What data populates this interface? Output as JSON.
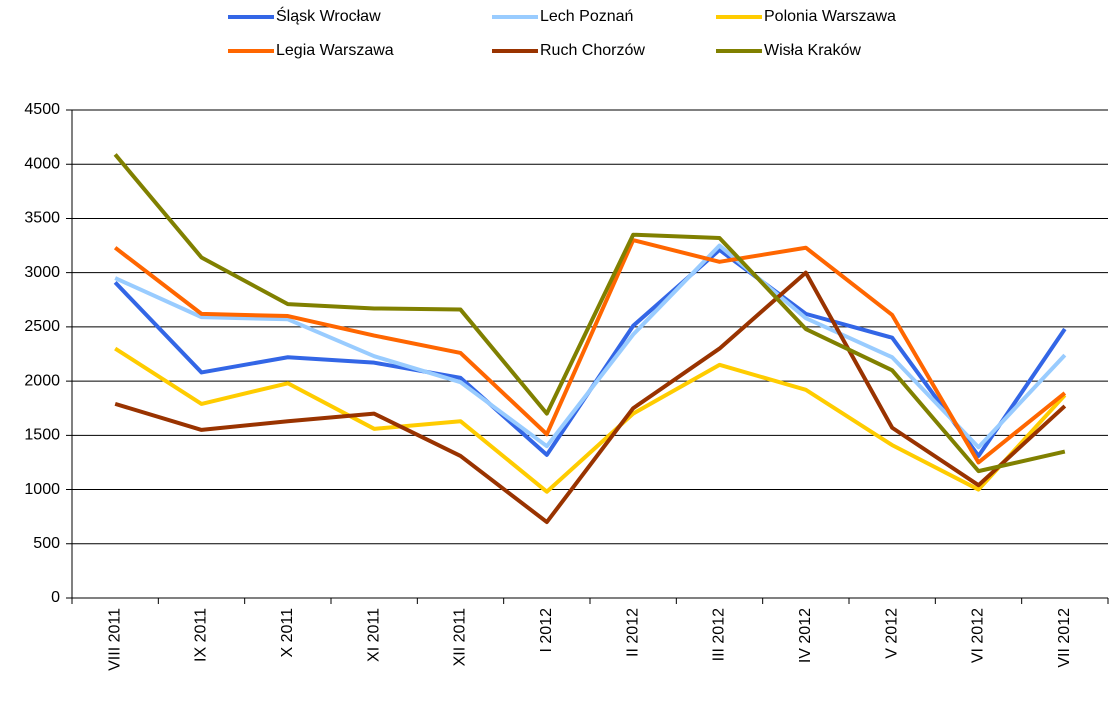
{
  "chart_data": {
    "type": "line",
    "categories": [
      "VIII 2011",
      "IX 2011",
      "X 2011",
      "XI 2011",
      "XII 2011",
      "I 2012",
      "II 2012",
      "III 2012",
      "IV 2012",
      "V 2012",
      "VI 2012",
      "VII 2012"
    ],
    "series": [
      {
        "name": "Śląsk Wrocław",
        "color": "#3366e6",
        "values": [
          2910,
          2080,
          2220,
          2170,
          2030,
          1320,
          2510,
          3210,
          2620,
          2400,
          1310,
          2480
        ]
      },
      {
        "name": "Lech Poznań",
        "color": "#99ccff",
        "values": [
          2950,
          2590,
          2570,
          2230,
          1990,
          1400,
          2430,
          3250,
          2580,
          2220,
          1390,
          2240
        ]
      },
      {
        "name": "Polonia Warszawa",
        "color": "#ffcc00",
        "values": [
          2300,
          1790,
          1980,
          1560,
          1630,
          980,
          1700,
          2150,
          1920,
          1410,
          1000,
          1870
        ]
      },
      {
        "name": "Legia Warszawa",
        "color": "#ff6600",
        "values": [
          3230,
          2620,
          2600,
          2420,
          2260,
          1510,
          3300,
          3100,
          3230,
          2610,
          1250,
          1890
        ]
      },
      {
        "name": "Ruch Chorzów",
        "color": "#993300",
        "values": [
          1790,
          1550,
          1630,
          1700,
          1310,
          700,
          1750,
          2300,
          3000,
          1570,
          1040,
          1770
        ]
      },
      {
        "name": "Wisła Kraków",
        "color": "#808000",
        "values": [
          4090,
          3140,
          2710,
          2670,
          2660,
          1700,
          3350,
          3320,
          2480,
          2100,
          1170,
          1350
        ]
      }
    ],
    "ylim": [
      0,
      4500
    ],
    "yticks": [
      0,
      500,
      1000,
      1500,
      2000,
      2500,
      3000,
      3500,
      4000,
      4500
    ],
    "grid": true
  }
}
